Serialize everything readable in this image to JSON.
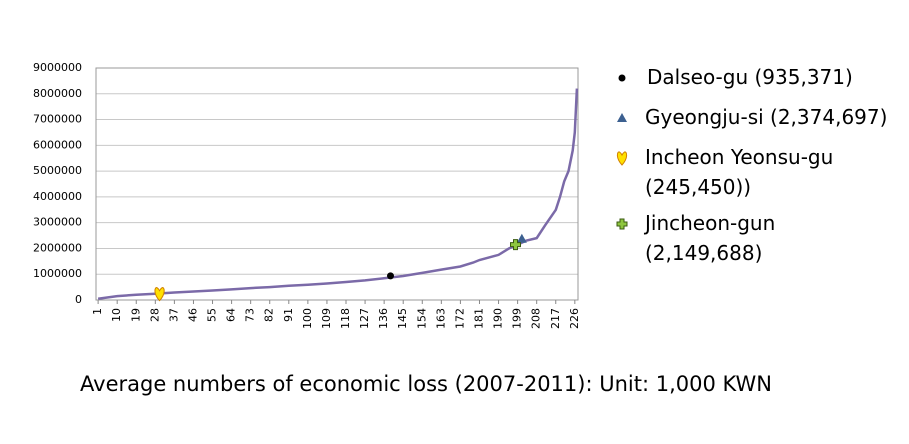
{
  "chart_data": {
    "type": "line",
    "caption": "Average numbers of economic loss (2007-2011): Unit: 1,000 KWN",
    "x": [
      1,
      10,
      19,
      28,
      37,
      46,
      55,
      64,
      73,
      82,
      91,
      100,
      109,
      118,
      127,
      136,
      145,
      154,
      163,
      172,
      178,
      181,
      190,
      195,
      199,
      203,
      208,
      212,
      217,
      219,
      221,
      223,
      225,
      226,
      227
    ],
    "values": [
      50000,
      150000,
      200000,
      240000,
      290000,
      330000,
      370000,
      410000,
      460000,
      500000,
      550000,
      590000,
      640000,
      700000,
      760000,
      840000,
      930000,
      1050000,
      1180000,
      1300000,
      1450000,
      1550000,
      1750000,
      2000000,
      2150000,
      2300000,
      2400000,
      2900000,
      3500000,
      4000000,
      4600000,
      5000000,
      5800000,
      6500000,
      8200000
    ],
    "color": "#7b6aa8",
    "xlim": [
      0,
      227.5
    ],
    "xticks": [
      1,
      10,
      19,
      28,
      37,
      46,
      55,
      64,
      73,
      82,
      91,
      100,
      109,
      118,
      127,
      136,
      145,
      154,
      163,
      172,
      181,
      190,
      199,
      208,
      217,
      226
    ],
    "ylim": [
      0,
      9000000
    ],
    "yticks": [
      0,
      1000000,
      2000000,
      3000000,
      4000000,
      5000000,
      6000000,
      7000000,
      8000000,
      9000000
    ],
    "grid": true,
    "markers": [
      {
        "name": "Dalseo-gu  (935,371)",
        "marker": "circle",
        "color": "#000000",
        "x": 139,
        "value": 935371
      },
      {
        "name": "Gyeongju-si (2,374,697)",
        "marker": "triangle",
        "color": "#3c6090",
        "x": 201,
        "value": 2374697
      },
      {
        "name": "Incheon Yeonsu-gu\n(245,450))",
        "marker": "heart",
        "color": "#ffe000",
        "x": 30,
        "value": 245450
      },
      {
        "name": "Jincheon-gun\n(2,149,688)",
        "marker": "cross",
        "color": "#8ec63f",
        "x": 198,
        "value": 2149688
      }
    ]
  }
}
